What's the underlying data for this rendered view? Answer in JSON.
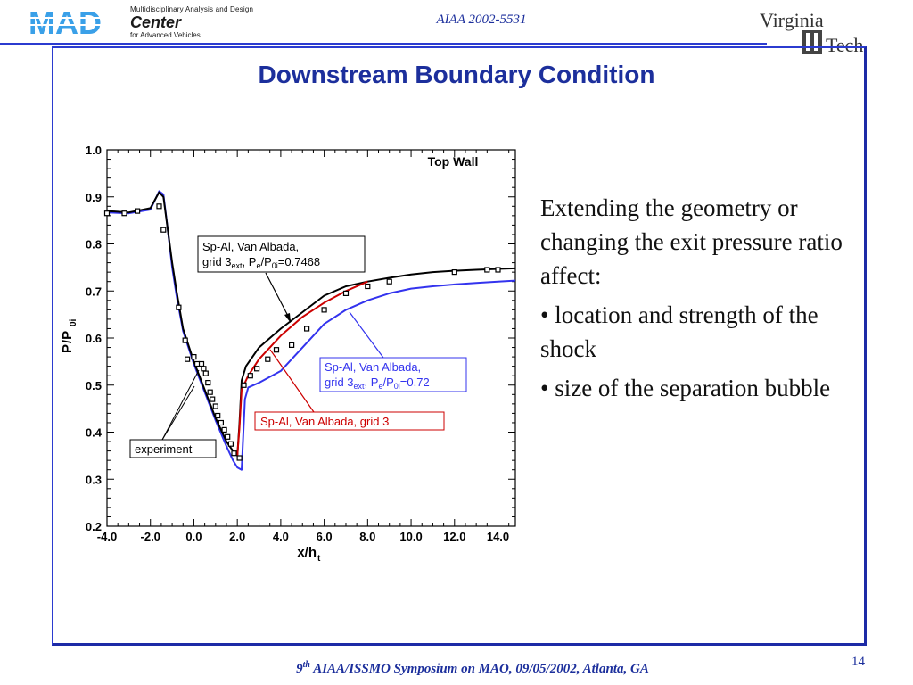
{
  "header": {
    "logo_line1": "Multidisciplinary Analysis and Design",
    "logo_line2": "Center",
    "logo_line3": "for Advanced Vehicles",
    "logo_mad": "MAD",
    "paper_id": "AIAA 2002-5531",
    "vt_line1": "Virginia",
    "vt_line2": "Tech"
  },
  "slide": {
    "title": "Downstream Boundary Condition",
    "body_intro": "Extending the geometry or changing the exit pressure ratio affect:",
    "bullet1": "• location and strength of the shock",
    "bullet2": "• size of the separation bubble"
  },
  "footer": {
    "ord_num": "9",
    "ord_sup": "th",
    "text": " AIAA/ISSMO Symposium on MAO, 09/05/2002, Atlanta, GA",
    "page": "14"
  },
  "colors": {
    "accent": "#1c2f9c",
    "frame": "#2b3bd0",
    "black_series": "#000000",
    "blue_series": "#3333ee",
    "red_series": "#cc0000"
  },
  "chart_data": {
    "type": "line",
    "title": "Top Wall",
    "xlabel_main": "x/h",
    "xlabel_sub": "t",
    "ylabel_main": "P",
    "ylabel_slash": "/P",
    "ylabel_sub": "0i",
    "xlim": [
      -4.0,
      14.8
    ],
    "ylim": [
      0.2,
      1.0
    ],
    "xticks": [
      -4.0,
      -2.0,
      0.0,
      2.0,
      4.0,
      6.0,
      8.0,
      10.0,
      12.0,
      14.0
    ],
    "xtick_labels": [
      "-4.0",
      "-2.0",
      "0.0",
      "2.0",
      "4.0",
      "6.0",
      "8.0",
      "10.0",
      "12.0",
      "14.0"
    ],
    "yticks": [
      0.2,
      0.3,
      0.4,
      0.5,
      0.6,
      0.7,
      0.8,
      0.9,
      1.0
    ],
    "ytick_labels": [
      "0.2",
      "0.3",
      "0.4",
      "0.5",
      "0.6",
      "0.7",
      "0.8",
      "0.9",
      "1.0"
    ],
    "series": [
      {
        "name": "Sp-Al, Van Albada, grid 3ext, Pe/P0i=0.7468",
        "label_lines": [
          "Sp-Al, Van Albada,",
          "grid 3",
          "ext",
          ", P",
          "e",
          "/P",
          "0i",
          "=0.7468"
        ],
        "color": "#000000",
        "x": [
          -4.0,
          -3.0,
          -2.0,
          -1.6,
          -1.4,
          -1.2,
          -1.0,
          -0.8,
          -0.5,
          0.0,
          0.5,
          1.0,
          1.5,
          1.8,
          2.0,
          2.1,
          2.2,
          2.4,
          3.0,
          4.0,
          5.0,
          6.0,
          7.0,
          8.0,
          9.0,
          10.0,
          11.0,
          12.0,
          13.0,
          14.0,
          14.8
        ],
        "y": [
          0.87,
          0.867,
          0.876,
          0.91,
          0.9,
          0.83,
          0.76,
          0.7,
          0.62,
          0.55,
          0.49,
          0.43,
          0.38,
          0.36,
          0.35,
          0.42,
          0.51,
          0.54,
          0.58,
          0.62,
          0.655,
          0.69,
          0.71,
          0.72,
          0.728,
          0.735,
          0.74,
          0.743,
          0.745,
          0.747,
          0.748
        ]
      },
      {
        "name": "Sp-Al, Van Albada, grid 3ext, Pe/P0i=0.72",
        "label_lines": [
          "Sp-Al, Van Albada,",
          "grid 3",
          "ext",
          ", P",
          "e",
          "/P",
          "0i",
          "=0.72"
        ],
        "color": "#3333ee",
        "x": [
          -4.0,
          -3.0,
          -2.0,
          -1.6,
          -1.4,
          -1.2,
          -1.0,
          -0.8,
          -0.5,
          0.0,
          0.5,
          1.0,
          1.5,
          1.8,
          2.0,
          2.2,
          2.35,
          2.5,
          3.0,
          4.0,
          5.0,
          6.0,
          7.0,
          8.0,
          9.0,
          10.0,
          11.0,
          12.0,
          13.0,
          14.0,
          14.8
        ],
        "y": [
          0.867,
          0.865,
          0.873,
          0.912,
          0.905,
          0.83,
          0.75,
          0.69,
          0.615,
          0.545,
          0.485,
          0.425,
          0.37,
          0.34,
          0.325,
          0.32,
          0.47,
          0.495,
          0.505,
          0.53,
          0.58,
          0.63,
          0.66,
          0.68,
          0.695,
          0.705,
          0.71,
          0.714,
          0.717,
          0.72,
          0.722
        ]
      },
      {
        "name": "Sp-Al, Van Albada, grid 3",
        "label_lines": [
          "Sp-Al, Van Albada, grid 3"
        ],
        "color": "#cc0000",
        "x": [
          2.0,
          2.1,
          2.2,
          2.5,
          3.0,
          4.0,
          5.0,
          6.0,
          7.0,
          8.0
        ],
        "y": [
          0.35,
          0.41,
          0.49,
          0.52,
          0.555,
          0.605,
          0.645,
          0.675,
          0.7,
          0.72
        ]
      },
      {
        "name": "experiment",
        "label_lines": [
          "experiment"
        ],
        "color": "#000000",
        "marker": "square",
        "x": [
          -4.0,
          -3.2,
          -2.6,
          -1.6,
          -1.4,
          -0.7,
          -0.4,
          -0.3,
          0.0,
          0.15,
          0.35,
          0.45,
          0.55,
          0.65,
          0.75,
          0.85,
          1.0,
          1.1,
          1.25,
          1.4,
          1.55,
          1.7,
          1.85,
          2.1,
          2.3,
          2.6,
          2.9,
          3.4,
          3.8,
          4.5,
          5.2,
          6.0,
          7.0,
          8.0,
          9.0,
          12.0,
          13.5,
          14.0
        ],
        "y": [
          0.865,
          0.865,
          0.87,
          0.88,
          0.83,
          0.665,
          0.595,
          0.555,
          0.56,
          0.545,
          0.545,
          0.535,
          0.525,
          0.505,
          0.485,
          0.47,
          0.455,
          0.435,
          0.42,
          0.405,
          0.39,
          0.375,
          0.355,
          0.345,
          0.5,
          0.52,
          0.535,
          0.555,
          0.575,
          0.585,
          0.62,
          0.66,
          0.695,
          0.71,
          0.72,
          0.74,
          0.745,
          0.745
        ]
      }
    ]
  }
}
